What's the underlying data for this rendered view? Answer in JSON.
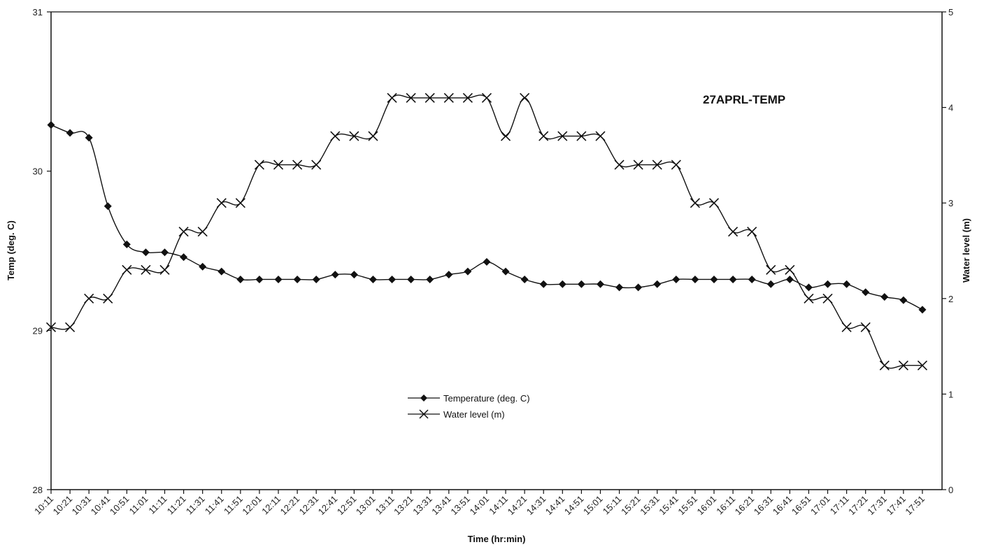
{
  "chart_data": {
    "type": "line",
    "title": "27APRL-TEMP",
    "xlabel": "Time (hr:min)",
    "ylabel_left": "Temp (deg. C)",
    "ylabel_right": "Water level (m)",
    "ylim_left": [
      28,
      31
    ],
    "ylim_right": [
      0,
      5
    ],
    "yticks_left": [
      28,
      29,
      30,
      31
    ],
    "yticks_right": [
      0,
      1,
      2,
      3,
      4,
      5
    ],
    "grid": false,
    "legend_position": "center",
    "categories": [
      "10:11",
      "10:21",
      "10:31",
      "10:41",
      "10:51",
      "11:01",
      "11:11",
      "11:21",
      "11:31",
      "11:41",
      "11:51",
      "12:01",
      "12:11",
      "12:21",
      "12:31",
      "12:41",
      "12:51",
      "13:01",
      "13:11",
      "13:21",
      "13:31",
      "13:41",
      "13:51",
      "14:01",
      "14:11",
      "14:21",
      "14:31",
      "14:41",
      "14:51",
      "15:01",
      "15:11",
      "15:21",
      "15:31",
      "15:41",
      "15:51",
      "16:01",
      "16:11",
      "16:21",
      "16:31",
      "16:41",
      "16:51",
      "17:01",
      "17:11",
      "17:21",
      "17:31",
      "17:41",
      "17:51"
    ],
    "series": [
      {
        "name": "Temperature (deg. C)",
        "axis": "left",
        "marker": "diamond",
        "values": [
          30.29,
          30.24,
          30.21,
          29.78,
          29.54,
          29.49,
          29.49,
          29.46,
          29.4,
          29.37,
          29.32,
          29.32,
          29.32,
          29.32,
          29.32,
          29.35,
          29.35,
          29.32,
          29.32,
          29.32,
          29.32,
          29.35,
          29.37,
          29.43,
          29.37,
          29.32,
          29.29,
          29.29,
          29.29,
          29.29,
          29.27,
          29.27,
          29.29,
          29.32,
          29.32,
          29.32,
          29.32,
          29.32,
          29.29,
          29.32,
          29.27,
          29.29,
          29.29,
          29.24,
          29.21,
          29.19,
          29.13
        ]
      },
      {
        "name": "Water level (m)",
        "axis": "right",
        "marker": "x",
        "values": [
          1.7,
          1.7,
          2.0,
          2.0,
          2.3,
          2.3,
          2.3,
          2.7,
          2.7,
          3.0,
          3.0,
          3.4,
          3.4,
          3.4,
          3.4,
          3.7,
          3.7,
          3.7,
          4.1,
          4.1,
          4.1,
          4.1,
          4.1,
          4.1,
          3.7,
          4.1,
          3.7,
          3.7,
          3.7,
          3.7,
          3.4,
          3.4,
          3.4,
          3.4,
          3.0,
          3.0,
          2.7,
          2.7,
          2.3,
          2.3,
          2.0,
          2.0,
          1.7,
          1.7,
          1.3,
          1.3,
          1.3
        ]
      }
    ]
  }
}
